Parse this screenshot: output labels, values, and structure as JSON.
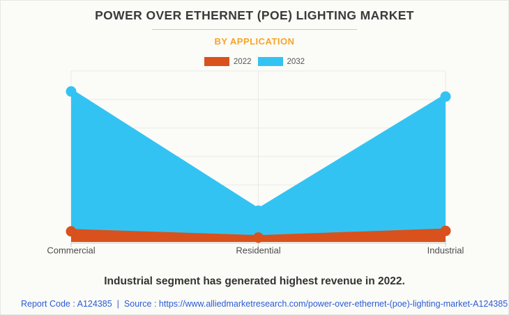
{
  "page": {
    "title": "POWER OVER ETHERNET (POE) LIGHTING MARKET",
    "subtitle": "BY APPLICATION",
    "note": "Industrial segment has generated highest revenue in 2022.",
    "footer": {
      "report_code": "Report Code : A124385",
      "separator": "|",
      "source": "Source : https://www.alliedmarketresearch.com/power-over-ethernet-(poe)-lighting-market-A124385"
    }
  },
  "colors": {
    "accent_2022": "#d9511c",
    "accent_2032": "#33c3f3",
    "subtitle_orange": "#f7a428",
    "link_blue": "#2a5bd7",
    "gridline": "#e8e8e4",
    "axis": "#cbcbc8",
    "axis_label": "#4b4b4b"
  },
  "chart_data": {
    "type": "area",
    "title": "POWER OVER ETHERNET (POE) LIGHTING MARKET",
    "subtitle": "BY APPLICATION",
    "categories": [
      "Commercial",
      "Residential",
      "Industrial"
    ],
    "series": [
      {
        "name": "2022",
        "color": "#d9511c",
        "values": [
          6.2,
          2.6,
          6.5
        ]
      },
      {
        "name": "2032",
        "color": "#33c3f3",
        "values": [
          88,
          18.3,
          85
        ]
      }
    ],
    "xlabel": "",
    "ylabel": "",
    "ylim": [
      0,
      100
    ],
    "grid": true,
    "h_grid_divisions": 6,
    "legend_position": "top-center",
    "note": "Industrial segment has generated highest revenue in 2022."
  }
}
